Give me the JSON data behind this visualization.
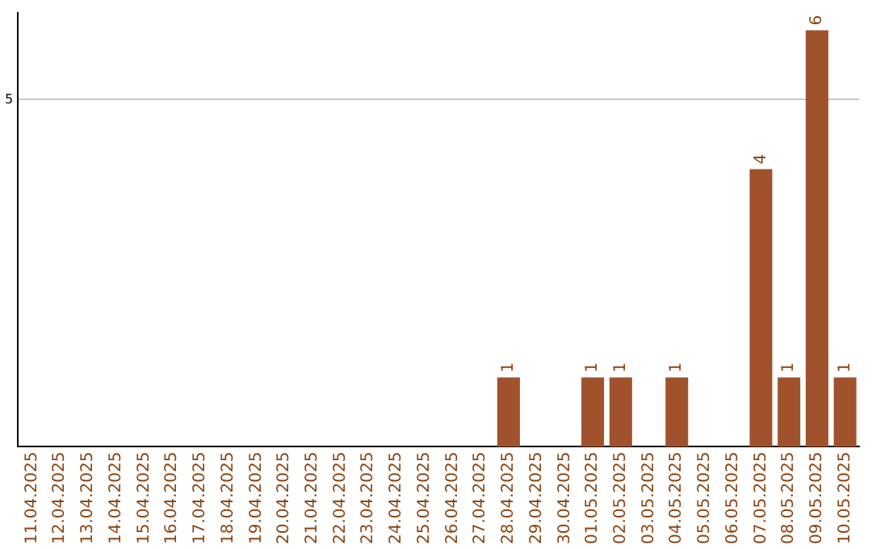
{
  "chart_data": {
    "type": "bar",
    "categories": [
      "11.04.2025",
      "12.04.2025",
      "13.04.2025",
      "14.04.2025",
      "15.04.2025",
      "16.04.2025",
      "17.04.2025",
      "18.04.2025",
      "19.04.2025",
      "20.04.2025",
      "21.04.2025",
      "22.04.2025",
      "23.04.2025",
      "24.04.2025",
      "25.04.2025",
      "26.04.2025",
      "27.04.2025",
      "28.04.2025",
      "29.04.2025",
      "30.04.2025",
      "01.05.2025",
      "02.05.2025",
      "03.05.2025",
      "04.05.2025",
      "05.05.2025",
      "06.05.2025",
      "07.05.2025",
      "08.05.2025",
      "09.05.2025",
      "10.05.2025"
    ],
    "values": [
      null,
      null,
      null,
      null,
      null,
      null,
      null,
      null,
      null,
      null,
      null,
      null,
      null,
      null,
      null,
      null,
      null,
      1,
      null,
      null,
      1,
      1,
      null,
      1,
      null,
      null,
      4,
      1,
      6,
      1
    ],
    "color": "#a0522d",
    "ylim": [
      0,
      6.25
    ],
    "yticks": [
      5
    ],
    "grid": "y",
    "data_labels": true,
    "legend": false
  }
}
